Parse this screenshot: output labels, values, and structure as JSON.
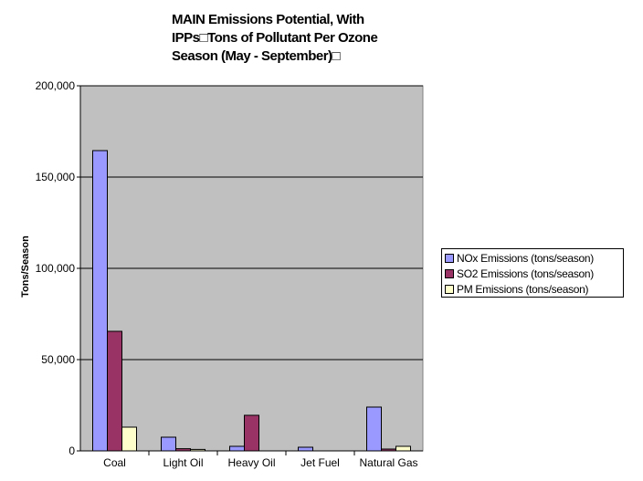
{
  "title_lines": [
    "MAIN Emissions Potential, With",
    "IPPs□Tons of Pollutant Per Ozone",
    "Season (May - September)□"
  ],
  "colors": {
    "plot_bg": "#c0c0c0",
    "gridline": "#000000",
    "series": [
      "#9999ff",
      "#993366",
      "#ffffcc"
    ]
  },
  "chart_data": {
    "type": "bar",
    "title": "MAIN Emissions Potential, With IPPs□Tons of Pollutant Per Ozone Season (May - September)□",
    "xlabel": "",
    "ylabel": "Tons/Season",
    "categories": [
      "Coal",
      "Light Oil",
      "Heavy Oil",
      "Jet Fuel",
      "Natural Gas"
    ],
    "series": [
      {
        "name": "NOx Emissions (tons/season)",
        "values": [
          164500,
          7500,
          2500,
          2000,
          24000
        ]
      },
      {
        "name": "SO2 Emissions (tons/season)",
        "values": [
          65500,
          1200,
          19500,
          0,
          1000
        ]
      },
      {
        "name": "PM Emissions (tons/season)",
        "values": [
          13000,
          800,
          0,
          0,
          2500
        ]
      }
    ],
    "ylim": [
      0,
      200000
    ],
    "yticks": [
      0,
      50000,
      100000,
      150000,
      200000
    ],
    "ytick_labels": [
      "0",
      "50,000",
      "100,000",
      "150,000",
      "200,000"
    ],
    "grid": true,
    "legend_position": "right"
  }
}
